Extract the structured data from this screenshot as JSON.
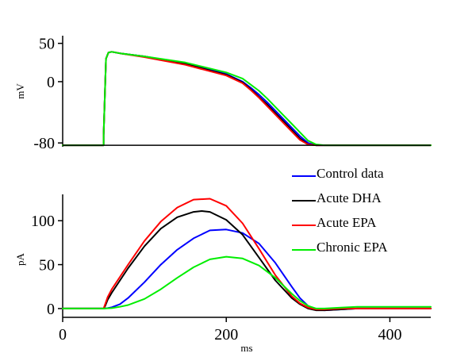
{
  "chart_data": [
    {
      "type": "line",
      "panel": "top",
      "title": "",
      "xlabel": "",
      "ylabel": "mV",
      "xlim": [
        0,
        450
      ],
      "ylim": [
        -85,
        60
      ],
      "yticks": [
        50,
        0,
        -80
      ],
      "ytick_labels": [
        "50",
        "0",
        "-80"
      ],
      "xticks": [],
      "grid": false,
      "series": [
        {
          "name": "Control data",
          "color": "#0000ff",
          "x": [
            0,
            50,
            50,
            53,
            56,
            60,
            70,
            100,
            150,
            200,
            220,
            230,
            240,
            250,
            260,
            270,
            280,
            290,
            300,
            310,
            320,
            350,
            450
          ],
          "y": [
            -83,
            -83,
            -70,
            30,
            38,
            39,
            37,
            33,
            24,
            10,
            0,
            -8,
            -17,
            -27,
            -38,
            -49,
            -60,
            -71,
            -80,
            -83,
            -83,
            -83,
            -83
          ]
        },
        {
          "name": "Acute DHA",
          "color": "#000000",
          "x": [
            0,
            50,
            50,
            53,
            56,
            60,
            70,
            100,
            150,
            200,
            220,
            230,
            240,
            250,
            260,
            270,
            280,
            290,
            300,
            310,
            320,
            350,
            450
          ],
          "y": [
            -83,
            -83,
            -70,
            30,
            38,
            39,
            37,
            33,
            23,
            9,
            -1,
            -10,
            -20,
            -30,
            -41,
            -52,
            -63,
            -74,
            -82,
            -83,
            -83,
            -83,
            -83
          ]
        },
        {
          "name": "Acute EPA",
          "color": "#ff0000",
          "x": [
            0,
            50,
            50,
            53,
            56,
            60,
            70,
            100,
            150,
            200,
            220,
            230,
            240,
            250,
            260,
            270,
            280,
            290,
            300,
            310,
            320,
            350,
            450
          ],
          "y": [
            -83,
            -83,
            -70,
            30,
            38,
            39,
            37,
            32,
            22,
            8,
            -2,
            -11,
            -21,
            -32,
            -43,
            -54,
            -65,
            -76,
            -82,
            -83,
            -83,
            -83,
            -83
          ]
        },
        {
          "name": "Chronic EPA",
          "color": "#00ee00",
          "x": [
            0,
            50,
            50,
            53,
            56,
            60,
            70,
            100,
            150,
            200,
            220,
            230,
            240,
            250,
            260,
            270,
            280,
            290,
            300,
            310,
            320,
            350,
            450
          ],
          "y": [
            -83,
            -83,
            -70,
            30,
            38,
            39,
            37,
            33,
            25,
            12,
            4,
            -4,
            -12,
            -22,
            -33,
            -44,
            -55,
            -66,
            -77,
            -82,
            -83,
            -83,
            -83
          ]
        }
      ]
    },
    {
      "type": "line",
      "panel": "bottom",
      "title": "",
      "xlabel": "ms",
      "ylabel": "pA",
      "xlim": [
        0,
        450
      ],
      "ylim": [
        -10,
        130
      ],
      "yticks": [
        100,
        50,
        0
      ],
      "ytick_labels": [
        "100",
        "50",
        "0"
      ],
      "xticks": [
        0,
        200,
        400
      ],
      "xtick_labels": [
        "0",
        "200",
        "400"
      ],
      "grid": false,
      "legend": "right-between-panels",
      "series": [
        {
          "name": "Control data",
          "color": "#0000ff",
          "x": [
            0,
            50,
            55,
            60,
            70,
            80,
            100,
            120,
            140,
            160,
            180,
            200,
            220,
            240,
            260,
            280,
            290,
            300,
            310,
            320,
            340,
            360,
            450
          ],
          "y": [
            0,
            0,
            0.5,
            1.5,
            5,
            12,
            30,
            50,
            67,
            80,
            89,
            90,
            86,
            74,
            52,
            25,
            12,
            3,
            -1,
            -2,
            -1,
            0,
            0
          ]
        },
        {
          "name": "Acute DHA",
          "color": "#000000",
          "x": [
            0,
            50,
            52,
            55,
            60,
            70,
            80,
            100,
            120,
            140,
            160,
            170,
            180,
            200,
            220,
            240,
            260,
            280,
            290,
            300,
            310,
            320,
            340,
            360,
            450
          ],
          "y": [
            0,
            0,
            3,
            10,
            18,
            32,
            46,
            71,
            91,
            104,
            110,
            111,
            110,
            101,
            84,
            58,
            32,
            12,
            5,
            0,
            -2,
            -2,
            -1,
            0,
            0
          ]
        },
        {
          "name": "Acute EPA",
          "color": "#ff0000",
          "x": [
            0,
            50,
            52,
            55,
            60,
            70,
            80,
            100,
            120,
            140,
            160,
            180,
            200,
            220,
            240,
            260,
            280,
            290,
            300,
            310,
            320,
            340,
            360,
            450
          ],
          "y": [
            0,
            0,
            5,
            13,
            22,
            36,
            50,
            77,
            99,
            115,
            124,
            125,
            117,
            97,
            68,
            38,
            14,
            6,
            1,
            -1,
            -1,
            0,
            0,
            0
          ]
        },
        {
          "name": "Chronic EPA",
          "color": "#00ee00",
          "x": [
            0,
            50,
            60,
            70,
            80,
            100,
            120,
            140,
            160,
            180,
            200,
            220,
            240,
            260,
            280,
            290,
            300,
            310,
            320,
            340,
            360,
            450
          ],
          "y": [
            0,
            0,
            0.5,
            2,
            4,
            11,
            22,
            35,
            47,
            56,
            59,
            57,
            49,
            35,
            17,
            9,
            3,
            0,
            0,
            1,
            2,
            2
          ]
        }
      ]
    }
  ]
}
